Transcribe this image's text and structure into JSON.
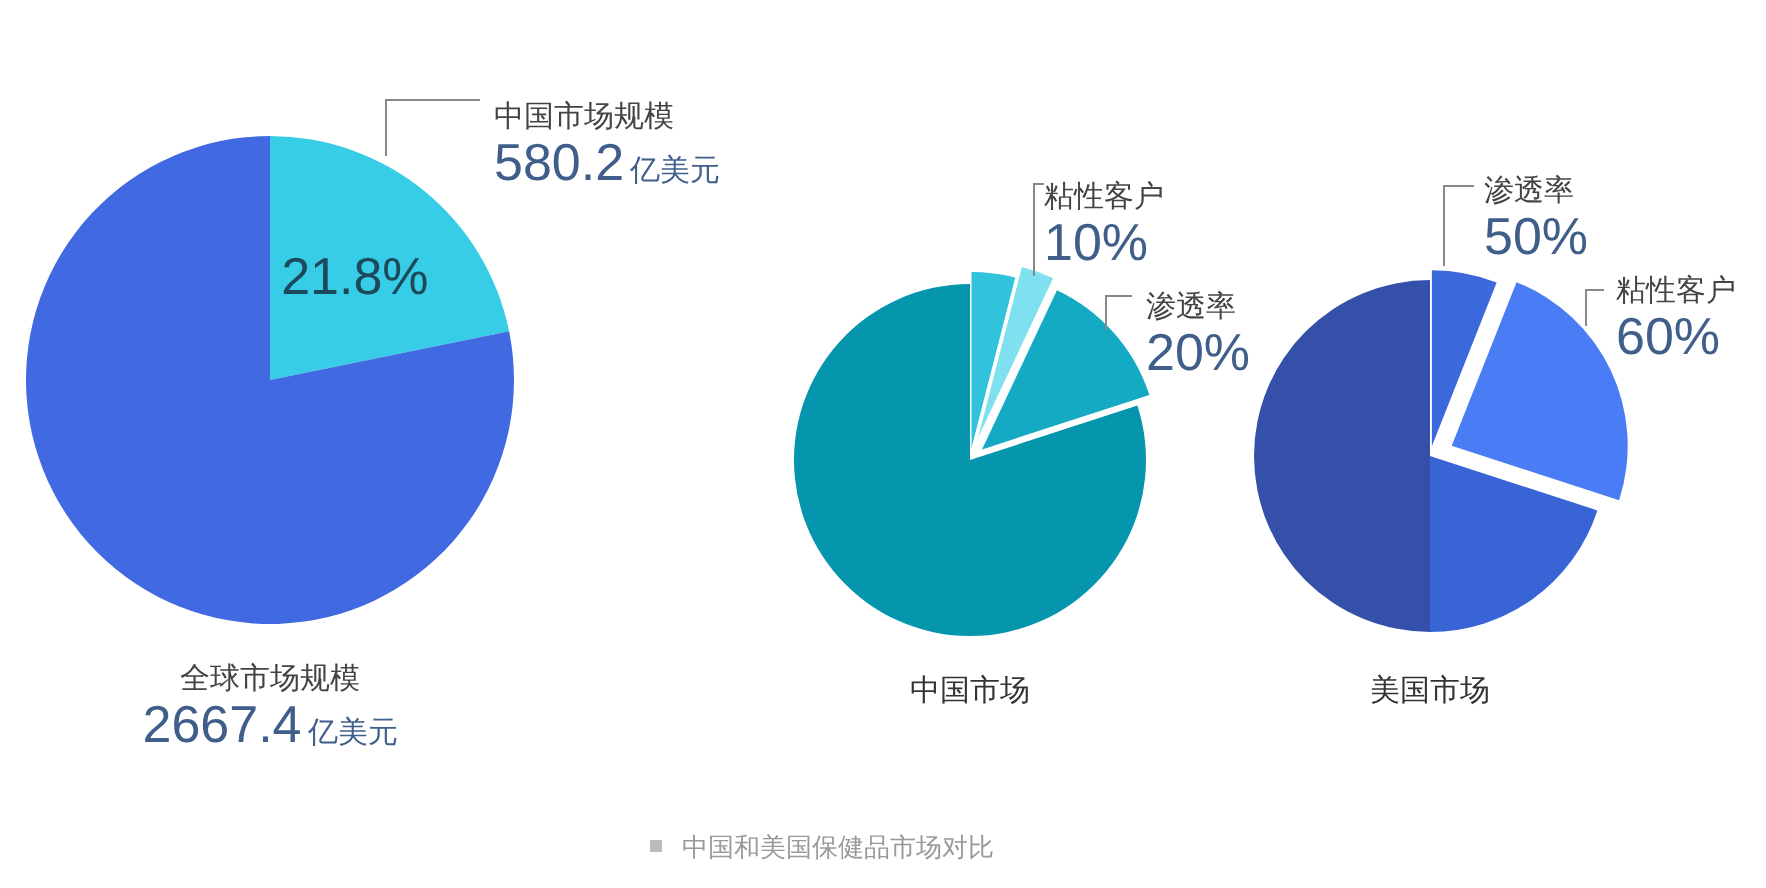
{
  "chart_data": [
    {
      "type": "pie",
      "categories": [
        "中国市场规模",
        "全球市场规模"
      ],
      "values": [
        21.8,
        78.2
      ],
      "colors": [
        "#37cde6",
        "#4169e1"
      ],
      "value_labels": [
        "21.8%",
        null
      ],
      "annotations": [
        "580.2亿美元",
        "2667.4亿美元"
      ]
    },
    {
      "type": "pie",
      "title": "中国市场",
      "categories": [
        null,
        "粘性客户",
        "渗透率",
        null
      ],
      "values": [
        4,
        3,
        13,
        80
      ],
      "colors": [
        "#30c3db",
        "#7fe0f0",
        "#14aac4",
        "#0595ad"
      ],
      "annotations": [
        "10%",
        "20%",
        "中国和美国保健品市场对比"
      ]
    },
    {
      "type": "pie",
      "title": "美国市场",
      "categories": [
        "渗透率",
        "粘性客户",
        null,
        null
      ],
      "values": [
        6,
        24,
        20,
        50
      ],
      "colors": [
        "#3b68db",
        "#4a7cf6",
        "#3864d5",
        "#3450a8"
      ],
      "annotations": [
        "50%",
        "60%"
      ]
    }
  ]
}
